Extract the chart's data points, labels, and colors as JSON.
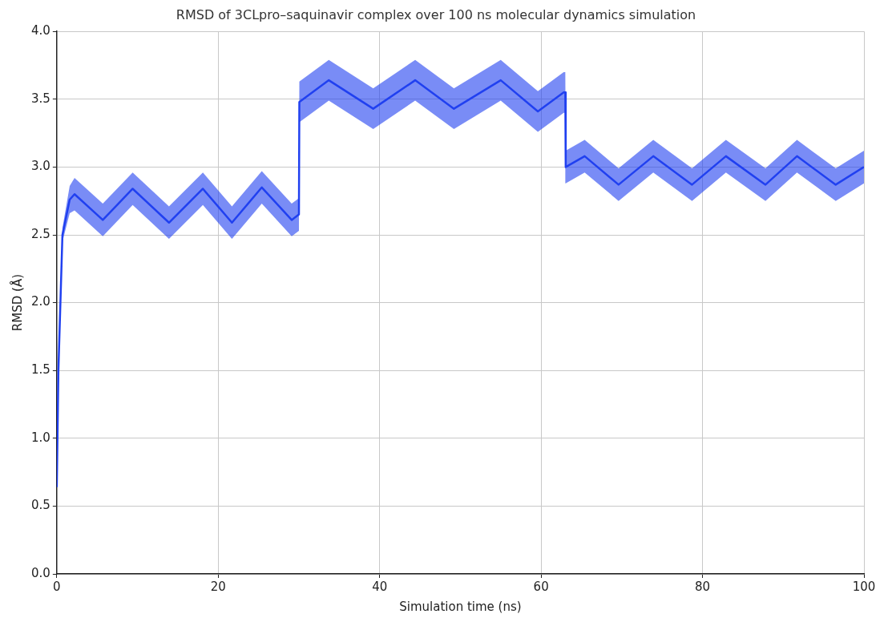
{
  "chart_data": {
    "type": "line",
    "title": "RMSD of 3CLpro–saquinavir complex over 100 ns molecular dynamics simulation",
    "xlabel": "Simulation time (ns)",
    "ylabel": "RMSD (Å)",
    "x": [
      0,
      0.2,
      0.7,
      1.6,
      2.2,
      5.7,
      9.4,
      13.9,
      18.1,
      21.7,
      25.4,
      29.1,
      30,
      30.05,
      33.7,
      39.2,
      44.4,
      49.2,
      55,
      59.6,
      62.8,
      63,
      63.05,
      65.4,
      69.6,
      73.9,
      78.7,
      82.9,
      87.8,
      91.7,
      96.5,
      100
    ],
    "series": [
      {
        "color": "#2040f0",
        "values": [
          0.64,
          1.5,
          2.5,
          2.76,
          2.8,
          2.61,
          2.84,
          2.59,
          2.84,
          2.59,
          2.85,
          2.61,
          2.65,
          3.48,
          3.64,
          3.43,
          3.64,
          3.43,
          3.64,
          3.41,
          3.55,
          3.55,
          3.0,
          3.08,
          2.87,
          3.08,
          2.87,
          3.08,
          2.87,
          3.08,
          2.87,
          3.0
        ],
        "lower": [
          0.64,
          1.5,
          2.45,
          2.66,
          2.68,
          2.49,
          2.72,
          2.47,
          2.72,
          2.47,
          2.73,
          2.49,
          2.53,
          3.33,
          3.49,
          3.28,
          3.49,
          3.28,
          3.49,
          3.26,
          3.4,
          3.4,
          2.88,
          2.96,
          2.75,
          2.96,
          2.75,
          2.96,
          2.75,
          2.96,
          2.75,
          2.88
        ],
        "upper": [
          0.64,
          1.5,
          2.55,
          2.86,
          2.92,
          2.73,
          2.96,
          2.71,
          2.96,
          2.71,
          2.97,
          2.73,
          2.77,
          3.63,
          3.79,
          3.58,
          3.79,
          3.58,
          3.79,
          3.56,
          3.7,
          3.7,
          3.12,
          3.2,
          2.99,
          3.2,
          2.99,
          3.2,
          2.99,
          3.2,
          2.99,
          3.12
        ]
      }
    ],
    "xlim": [
      0,
      100
    ],
    "xticks": [
      0,
      20,
      40,
      60,
      80,
      100
    ],
    "ylim": [
      0,
      4
    ],
    "yticks": [
      {
        "value": 0,
        "label": "0.0"
      },
      {
        "value": 0.5,
        "label": "0.5"
      },
      {
        "value": 1,
        "label": "1.0"
      },
      {
        "value": 1.5,
        "label": "1.5"
      },
      {
        "value": 2,
        "label": "2.0"
      },
      {
        "value": 2.5,
        "label": "2.5"
      },
      {
        "value": 3,
        "label": "3.0"
      },
      {
        "value": 3.5,
        "label": "3.5"
      },
      {
        "value": 4,
        "label": "4.0"
      }
    ],
    "grid": true,
    "legend": false,
    "marker": "none",
    "line_style": "solid"
  }
}
